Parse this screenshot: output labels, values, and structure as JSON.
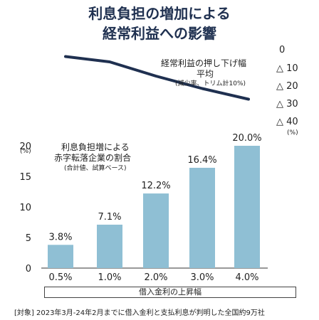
{
  "title_line1": "利息負担の増加による",
  "title_line2": "経常利益への影響",
  "line_label": "経常利益の押し下げ幅",
  "line_label2": "平均",
  "line_note": "(減少率、トリム計10%)",
  "right_axis_ticks": [
    "0",
    "△ 10",
    "△ 20",
    "△ 30",
    "△ 40"
  ],
  "right_axis_unit": "(%)",
  "bar_label": "利息負担増による",
  "bar_label2": "赤字転落企業の割合",
  "bar_note": "(合計値、試算ベース)",
  "left_axis_unit": "(%)",
  "xaxis_title": "借入金利の上昇幅",
  "footnote": "[対象] 2023年3月-24年2月までに借入金利と支払利息が判明した全国約9万社",
  "chart_data": {
    "type": "bar",
    "categories": [
      "0.5%",
      "1.0%",
      "2.0%",
      "3.0%",
      "4.0%"
    ],
    "values": [
      3.8,
      7.1,
      12.2,
      16.4,
      20.0
    ],
    "value_labels": [
      "3.8%",
      "7.1%",
      "12.2%",
      "16.4%",
      "20.0%"
    ],
    "ylim": [
      0,
      20
    ],
    "yticks": [
      0,
      5,
      10,
      15,
      20
    ],
    "bar_color": "#8fbfd4",
    "line_series": {
      "values": [
        -3,
        -6,
        -14,
        -21,
        -27
      ],
      "ylim": [
        -40,
        0
      ],
      "color": "#1f3050"
    }
  }
}
